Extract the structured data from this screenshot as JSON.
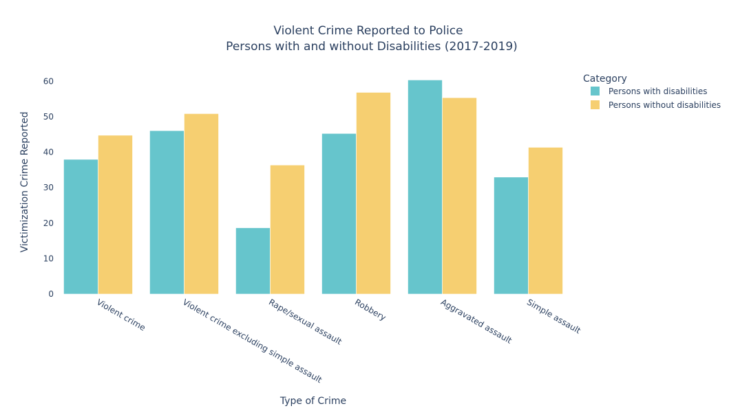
{
  "colors": {
    "series_0": "#66c5cc",
    "series_1": "#f6cf71",
    "text": "#2a3f5f",
    "gridline": "#ffffff"
  },
  "chart_data": {
    "type": "bar",
    "barmode": "group",
    "title": "Violent Crime Reported to Police",
    "subtitle": "Persons with and without Disabilities (2017-2019)",
    "xlabel": "Type of Crime",
    "ylabel": "Victimization Crime Reported",
    "ylim": [
      0,
      63
    ],
    "yticks": [
      0,
      10,
      20,
      30,
      40,
      50,
      60
    ],
    "grid": false,
    "legend_title": "Category",
    "legend_position": "top-right",
    "categories": [
      "Violent crime",
      "Violent crime excluding simple assault",
      "Rape/sexual assault",
      "Robbery",
      "Aggravated assault",
      "Simple assault"
    ],
    "series": [
      {
        "name": "Persons with disabilities",
        "color": "#66c5cc",
        "values": [
          38.0,
          46.1,
          18.7,
          45.3,
          60.4,
          33.0
        ]
      },
      {
        "name": "Persons without disabilities",
        "color": "#f6cf71",
        "values": [
          44.8,
          50.9,
          36.4,
          56.9,
          55.4,
          41.4
        ]
      }
    ]
  }
}
